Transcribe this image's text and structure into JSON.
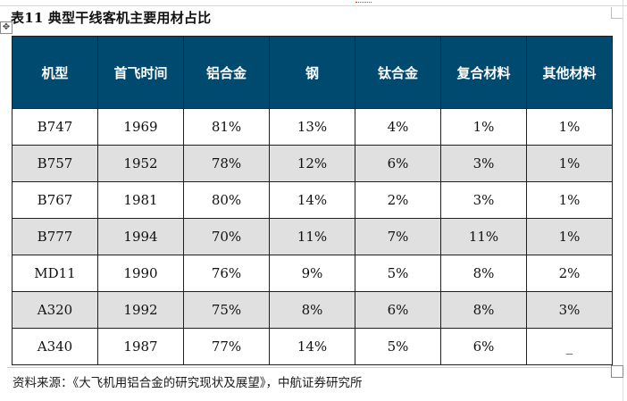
{
  "document": {
    "title": "表11  典型干线客机主要用材占比",
    "move_handle_glyph": "✥",
    "source": "资料来源：《大飞机用铝合金的研究现状及展望》，中航证券研究所"
  },
  "table": {
    "headers": [
      "机型",
      "首飞时间",
      "铝合金",
      "钢",
      "钛合金",
      "复合材料",
      "其他材料"
    ],
    "rows": [
      [
        "B747",
        "1969",
        "81%",
        "13%",
        "4%",
        "1%",
        "1%"
      ],
      [
        "B757",
        "1952",
        "78%",
        "12%",
        "6%",
        "3%",
        "1%"
      ],
      [
        "B767",
        "1981",
        "80%",
        "14%",
        "2%",
        "3%",
        "1%"
      ],
      [
        "B777",
        "1994",
        "70%",
        "11%",
        "7%",
        "11%",
        "1%"
      ],
      [
        "MD11",
        "1990",
        "76%",
        "9%",
        "5%",
        "8%",
        "2%"
      ],
      [
        "A320",
        "1992",
        "75%",
        "8%",
        "6%",
        "8%",
        "3%"
      ],
      [
        "A340",
        "1987",
        "77%",
        "14%",
        "5%",
        "6%",
        "_"
      ]
    ]
  },
  "colors": {
    "header_background": "#004a70",
    "header_text": "#ffffff",
    "stripe_row": "#e0e0e0",
    "border": "#1f1f1f"
  }
}
